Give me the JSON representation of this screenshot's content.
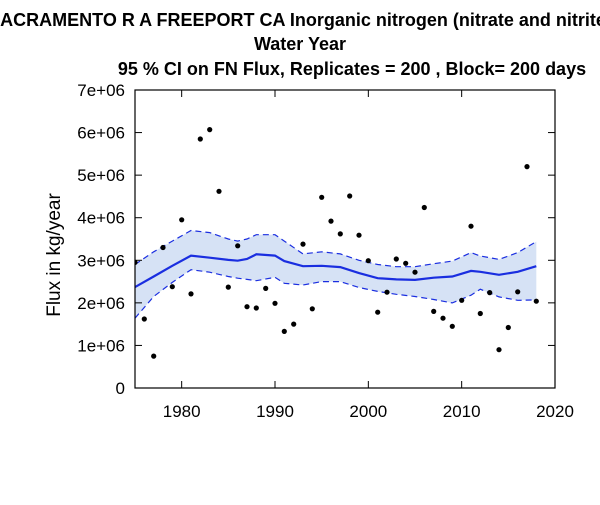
{
  "chart_data": {
    "type": "line",
    "title_lines": [
      "SACRAMENTO R A FREEPORT CA   Inorganic nitrogen (nitrate and nitrite)",
      "Water Year",
      "95 % CI on FN Flux, Replicates = 200 , Block= 200 days"
    ],
    "xlabel": "",
    "ylabel": "Flux in kg/year",
    "xlim": [
      1975,
      2020
    ],
    "ylim": [
      0,
      7000000
    ],
    "x_ticks": [
      1980,
      1990,
      2000,
      2010,
      2020
    ],
    "x_tick_labels": [
      "1980",
      "1990",
      "2000",
      "2010",
      "2020"
    ],
    "y_ticks": [
      0,
      1000000,
      2000000,
      3000000,
      4000000,
      5000000,
      6000000,
      7000000
    ],
    "y_tick_labels": [
      "0",
      "1e+06",
      "2e+06",
      "3e+06",
      "4e+06",
      "5e+06",
      "6e+06",
      "7e+06"
    ],
    "colors": {
      "line": "#1a2ee0",
      "band": "#d6e2f5",
      "points": "#000000"
    },
    "trend": {
      "x": [
        1975,
        1977,
        1979,
        1981,
        1983,
        1985,
        1986,
        1987,
        1988,
        1990,
        1991,
        1993,
        1995,
        1997,
        1999,
        2001,
        2003,
        2005,
        2007,
        2009,
        2011,
        2012,
        2014,
        2016,
        2018
      ],
      "fn": [
        2370000,
        2620000,
        2870000,
        3110000,
        3060000,
        3010000,
        2990000,
        3030000,
        3140000,
        3110000,
        2980000,
        2860000,
        2870000,
        2840000,
        2700000,
        2580000,
        2550000,
        2540000,
        2590000,
        2620000,
        2750000,
        2730000,
        2660000,
        2730000,
        2860000
      ],
      "upper": [
        2900000,
        3200000,
        3450000,
        3700000,
        3650000,
        3500000,
        3450000,
        3500000,
        3600000,
        3600000,
        3450000,
        3150000,
        3200000,
        3150000,
        3000000,
        2900000,
        2850000,
        2850000,
        2920000,
        2980000,
        3180000,
        3100000,
        3020000,
        3180000,
        3440000
      ],
      "lower": [
        1640000,
        2150000,
        2480000,
        2780000,
        2720000,
        2620000,
        2580000,
        2550000,
        2520000,
        2600000,
        2460000,
        2420000,
        2500000,
        2500000,
        2360000,
        2270000,
        2200000,
        2150000,
        2080000,
        2000000,
        2180000,
        2320000,
        2140000,
        2060000,
        2070000
      ]
    },
    "points": {
      "x": [
        1975,
        1976,
        1977,
        1978,
        1979,
        1980,
        1981,
        1982,
        1983,
        1984,
        1985,
        1986,
        1987,
        1988,
        1989,
        1990,
        1991,
        1992,
        1993,
        1994,
        1995,
        1996,
        1997,
        1998,
        1999,
        2000,
        2001,
        2002,
        2003,
        2004,
        2005,
        2006,
        2007,
        2008,
        2009,
        2010,
        2011,
        2012,
        2013,
        2014,
        2015,
        2016,
        2017,
        2018
      ],
      "y": [
        2950000,
        1620000,
        750000,
        3300000,
        2380000,
        3950000,
        2210000,
        5850000,
        6070000,
        4620000,
        2370000,
        3340000,
        1910000,
        1880000,
        2340000,
        1990000,
        1330000,
        1500000,
        3380000,
        1860000,
        4480000,
        3920000,
        3620000,
        4510000,
        3590000,
        2990000,
        1780000,
        2250000,
        3030000,
        2930000,
        2720000,
        4240000,
        1800000,
        1640000,
        1450000,
        2060000,
        3800000,
        1750000,
        2240000,
        900000,
        1420000,
        2260000,
        5200000,
        2040000
      ]
    }
  }
}
